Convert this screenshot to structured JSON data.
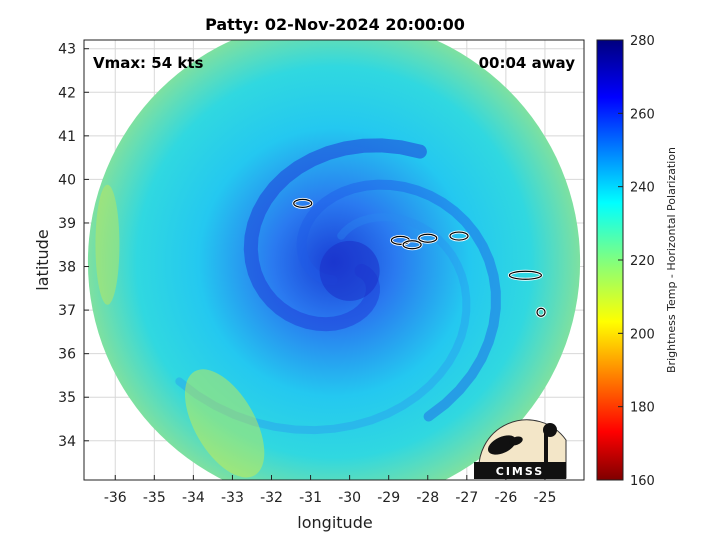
{
  "chart_data": {
    "type": "heatmap",
    "title": "Patty: 02-Nov-2024 20:00:00",
    "xlabel": "longitude",
    "ylabel": "latitude",
    "xlim": [
      -36.8,
      -24.0
    ],
    "ylim": [
      33.1,
      43.2
    ],
    "xticks": [
      -36,
      -35,
      -34,
      -33,
      -32,
      -31,
      -30,
      -29,
      -28,
      -27,
      -26,
      -25
    ],
    "yticks": [
      34,
      35,
      36,
      37,
      38,
      39,
      40,
      41,
      42,
      43
    ],
    "grid": true,
    "annotations": {
      "top_left": "Vmax: 54 kts",
      "top_right": "00:04 away"
    },
    "colorbar": {
      "label": "Brightness Temp - Horizontal Polarization",
      "range": [
        160,
        280
      ],
      "ticks": [
        160,
        180,
        200,
        220,
        240,
        260,
        280
      ],
      "colormap": "jet"
    },
    "storm_center": {
      "lon": -30.0,
      "lat": 37.9
    },
    "swath": {
      "center_lon": -30.4,
      "center_lat": 38.1,
      "radius_lon": 6.3,
      "radius_lat": 5.6
    },
    "land_outlines": [
      {
        "name": "island-1",
        "lon": -31.2,
        "lat": 39.45
      },
      {
        "name": "island-2",
        "lon": -28.7,
        "lat": 38.6
      },
      {
        "name": "island-3",
        "lon": -28.4,
        "lat": 38.5
      },
      {
        "name": "island-4",
        "lon": -28.0,
        "lat": 38.65
      },
      {
        "name": "island-5",
        "lon": -27.2,
        "lat": 38.7
      },
      {
        "name": "island-6",
        "lon": -25.5,
        "lat": 37.8
      },
      {
        "name": "island-7",
        "lon": -25.1,
        "lat": 36.95
      }
    ]
  },
  "logo": {
    "text": "CIMSS"
  }
}
